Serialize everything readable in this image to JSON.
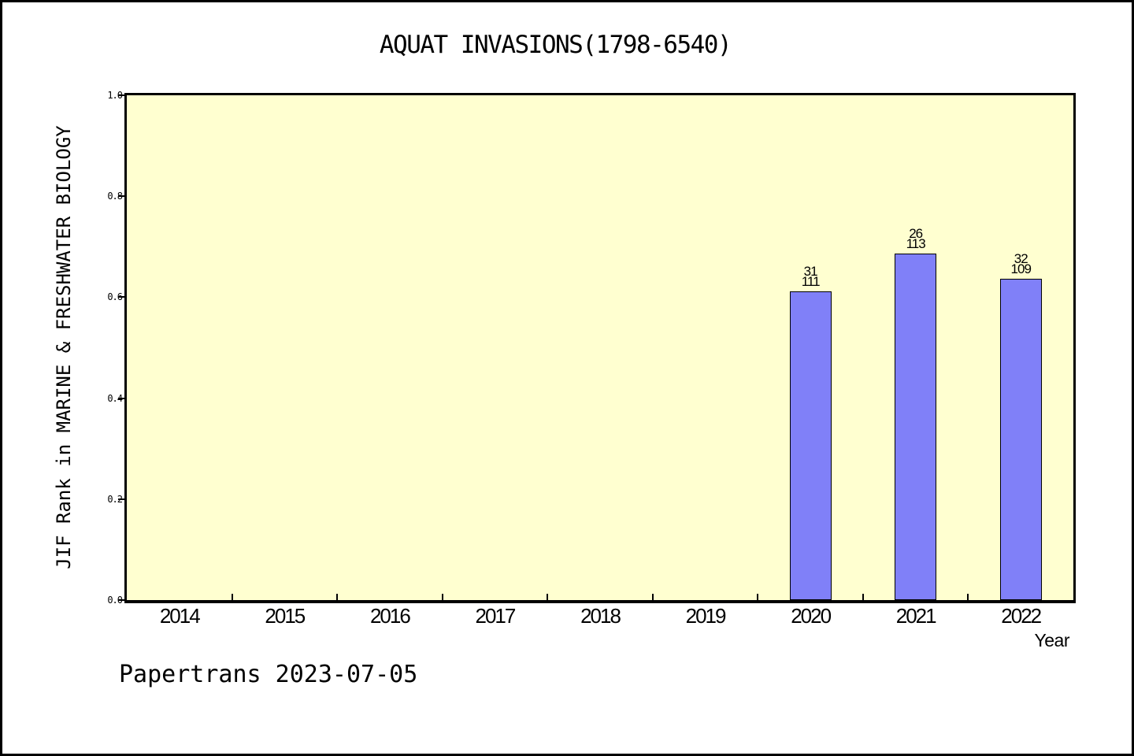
{
  "page": {
    "footer": "Papertrans 2023-07-05"
  },
  "chart_data": {
    "type": "bar",
    "title": "AQUAT INVASIONS(1798-6540)",
    "xlabel": "Year",
    "ylabel": "JIF Rank in MARINE & FRESHWATER BIOLOGY",
    "ylim": [
      0.0,
      1.0
    ],
    "grid": false,
    "legend": false,
    "yticks": [
      {
        "value": 0.0,
        "label": "0.0"
      },
      {
        "value": 0.2,
        "label": "0.2"
      },
      {
        "value": 0.4,
        "label": "0.4"
      },
      {
        "value": 0.6,
        "label": "0.6"
      },
      {
        "value": 0.8,
        "label": "0.8"
      },
      {
        "value": 1.0,
        "label": "1.0"
      }
    ],
    "categories": [
      "2014",
      "2015",
      "2016",
      "2017",
      "2018",
      "2019",
      "2020",
      "2021",
      "2022"
    ],
    "bars": [
      {
        "category": "2020",
        "rank_label": "31",
        "total_label": "111",
        "value": 0.611
      },
      {
        "category": "2021",
        "rank_label": "26",
        "total_label": "113",
        "value": 0.686
      },
      {
        "category": "2022",
        "rank_label": "32",
        "total_label": "109",
        "value": 0.637
      }
    ],
    "colors": {
      "bar_fill": "#8080f8",
      "bar_border": "#000000",
      "plot_background": "#ffffd0",
      "axis": "#000000",
      "text": "#000000",
      "page_background": "#ffffff"
    }
  }
}
